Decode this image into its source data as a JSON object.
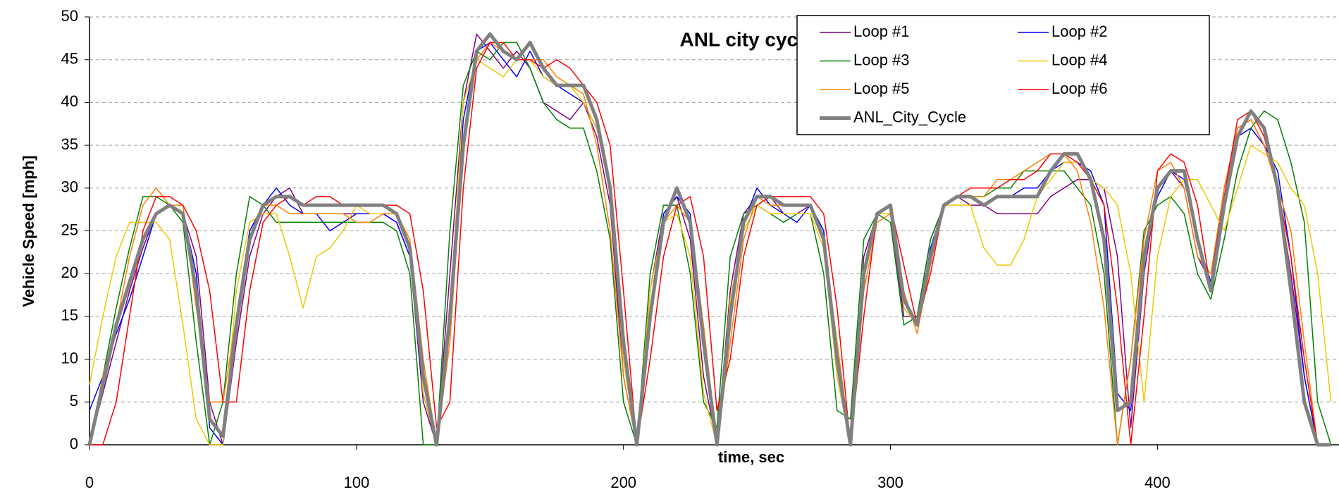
{
  "chart_data": {
    "type": "line",
    "title": "ANL city cycle",
    "xlabel": "time, sec",
    "ylabel": "Vehicle Speed [mph]",
    "x": [
      0,
      5,
      10,
      15,
      20,
      25,
      30,
      35,
      40,
      45,
      50,
      55,
      60,
      65,
      70,
      75,
      80,
      85,
      90,
      95,
      100,
      105,
      110,
      115,
      120,
      125,
      130,
      135,
      140,
      145,
      150,
      155,
      160,
      165,
      170,
      175,
      180,
      185,
      190,
      195,
      200,
      205,
      210,
      215,
      220,
      225,
      230,
      235,
      240,
      245,
      250,
      255,
      260,
      265,
      270,
      275,
      280,
      285,
      290,
      295,
      300,
      305,
      310,
      315,
      320,
      325,
      330,
      335,
      340,
      345,
      350,
      355,
      360,
      365,
      370,
      375,
      380,
      385,
      390,
      395,
      400,
      405,
      410,
      415,
      420,
      425,
      430,
      435,
      440,
      445,
      450,
      455,
      460,
      465
    ],
    "series": [
      {
        "name": "Loop #1",
        "color": "#800080",
        "width": 1.5,
        "values": [
          0,
          6,
          12,
          18,
          23,
          27,
          28,
          27,
          22,
          5,
          0,
          12,
          22,
          27,
          29,
          30,
          27,
          27,
          27,
          27,
          27,
          27,
          27,
          26,
          22,
          5,
          0,
          20,
          40,
          48,
          46,
          44,
          46,
          44,
          40,
          39,
          38,
          40,
          36,
          28,
          8,
          0,
          18,
          27,
          29,
          24,
          8,
          0,
          18,
          27,
          29,
          29,
          27,
          27,
          28,
          25,
          8,
          0,
          22,
          27,
          27,
          15,
          15,
          24,
          28,
          29,
          28,
          28,
          27,
          27,
          27,
          27,
          29,
          30,
          31,
          31,
          30,
          22,
          2,
          20,
          30,
          32,
          30,
          22,
          19,
          30,
          37,
          38,
          35,
          30,
          20,
          8,
          0,
          0
        ]
      },
      {
        "name": "Loop #2",
        "color": "#0000ff",
        "width": 1.5,
        "values": [
          4,
          8,
          13,
          17,
          22,
          27,
          28,
          27,
          20,
          2,
          0,
          15,
          25,
          28,
          30,
          28,
          27,
          27,
          25,
          26,
          27,
          27,
          27,
          26,
          22,
          6,
          0,
          16,
          38,
          46,
          47,
          45,
          43,
          46,
          43,
          42,
          41,
          40,
          37,
          30,
          10,
          0,
          16,
          27,
          29,
          27,
          12,
          0,
          16,
          26,
          30,
          28,
          27,
          26,
          28,
          25,
          10,
          0,
          20,
          27,
          28,
          16,
          14,
          23,
          28,
          29,
          29,
          28,
          29,
          29,
          30,
          30,
          32,
          33,
          33,
          32,
          28,
          6,
          4,
          22,
          29,
          32,
          31,
          24,
          19,
          28,
          36,
          37,
          35,
          32,
          22,
          8,
          0,
          0
        ]
      },
      {
        "name": "Loop #3",
        "color": "#008000",
        "width": 1.5,
        "values": [
          0,
          8,
          16,
          23,
          29,
          29,
          28,
          26,
          12,
          0,
          5,
          20,
          29,
          28,
          26,
          26,
          26,
          26,
          26,
          26,
          26,
          26,
          26,
          25,
          20,
          0,
          0,
          25,
          42,
          46,
          45,
          47,
          47,
          44,
          40,
          38,
          37,
          37,
          32,
          24,
          5,
          0,
          20,
          28,
          28,
          20,
          5,
          2,
          22,
          27,
          28,
          27,
          26,
          27,
          27,
          20,
          4,
          3,
          24,
          27,
          26,
          14,
          15,
          24,
          28,
          29,
          29,
          29,
          30,
          30,
          32,
          32,
          32,
          32,
          30,
          28,
          20,
          0,
          10,
          25,
          28,
          29,
          27,
          20,
          17,
          24,
          32,
          37,
          39,
          38,
          33,
          26,
          5,
          0
        ]
      },
      {
        "name": "Loop #4",
        "color": "#f0c800",
        "width": 1.5,
        "values": [
          7,
          15,
          22,
          26,
          26,
          26,
          24,
          14,
          3,
          0,
          0,
          18,
          26,
          27,
          27,
          22,
          16,
          22,
          23,
          25,
          28,
          27,
          27,
          27,
          24,
          6,
          0,
          15,
          40,
          45,
          44,
          43,
          45,
          45,
          43,
          42,
          42,
          40,
          37,
          30,
          10,
          0,
          18,
          26,
          27,
          22,
          6,
          0,
          17,
          25,
          28,
          27,
          27,
          27,
          27,
          23,
          8,
          0,
          20,
          27,
          27,
          16,
          14,
          22,
          28,
          28,
          28,
          23,
          21,
          21,
          24,
          29,
          31,
          33,
          33,
          31,
          30,
          28,
          20,
          5,
          22,
          29,
          31,
          31,
          28,
          25,
          30,
          35,
          34,
          33,
          30,
          28,
          20,
          5
        ]
      },
      {
        "name": "Loop #5",
        "color": "#ff8000",
        "width": 1.5,
        "values": [
          0,
          8,
          14,
          22,
          28,
          30,
          28,
          28,
          16,
          5,
          5,
          15,
          24,
          28,
          28,
          27,
          27,
          27,
          27,
          27,
          26,
          26,
          27,
          27,
          24,
          10,
          0,
          12,
          35,
          45,
          47,
          46,
          45,
          45,
          45,
          43,
          42,
          41,
          35,
          25,
          8,
          0,
          16,
          26,
          28,
          26,
          14,
          0,
          12,
          24,
          29,
          28,
          28,
          28,
          28,
          24,
          12,
          0,
          18,
          26,
          27,
          18,
          13,
          21,
          28,
          29,
          29,
          29,
          31,
          31,
          32,
          33,
          34,
          34,
          32,
          26,
          16,
          0,
          10,
          24,
          32,
          33,
          30,
          22,
          20,
          30,
          37,
          38,
          35,
          30,
          25,
          12,
          0,
          0
        ]
      },
      {
        "name": "Loop #6",
        "color": "#ff0000",
        "width": 1.5,
        "values": [
          0,
          0,
          5,
          15,
          25,
          29,
          29,
          28,
          25,
          18,
          5,
          5,
          18,
          26,
          28,
          29,
          28,
          29,
          29,
          28,
          28,
          28,
          28,
          28,
          27,
          18,
          2,
          5,
          30,
          44,
          47,
          47,
          45,
          45,
          44,
          45,
          44,
          42,
          40,
          35,
          18,
          0,
          10,
          22,
          28,
          29,
          22,
          4,
          10,
          22,
          28,
          29,
          29,
          29,
          29,
          27,
          16,
          0,
          15,
          27,
          28,
          21,
          14,
          20,
          28,
          29,
          30,
          30,
          30,
          31,
          31,
          32,
          34,
          34,
          33,
          31,
          28,
          16,
          0,
          15,
          32,
          34,
          33,
          28,
          18,
          29,
          38,
          39,
          36,
          30,
          22,
          10,
          0,
          0
        ]
      },
      {
        "name": "ANL_City_Cycle",
        "color": "#808080",
        "width": 5,
        "values": [
          0,
          7,
          14,
          19,
          24,
          27,
          28,
          27,
          18,
          3,
          1,
          14,
          24,
          28,
          29,
          29,
          28,
          28,
          28,
          28,
          28,
          28,
          28,
          27,
          23,
          8,
          0,
          15,
          35,
          46,
          48,
          46,
          45,
          47,
          44,
          42,
          42,
          42,
          38,
          30,
          12,
          0,
          15,
          26,
          30,
          26,
          12,
          0,
          15,
          26,
          29,
          29,
          28,
          28,
          28,
          24,
          10,
          0,
          20,
          27,
          28,
          17,
          14,
          22,
          28,
          29,
          29,
          28,
          29,
          29,
          29,
          29,
          32,
          34,
          34,
          31,
          24,
          4,
          5,
          22,
          30,
          32,
          32,
          24,
          18,
          28,
          36,
          39,
          37,
          30,
          18,
          5,
          0,
          0
        ]
      }
    ],
    "xlim": [
      0,
      468
    ],
    "xticks": [
      0,
      100,
      200,
      300,
      400
    ],
    "ylim": [
      0,
      50
    ],
    "yticks": [
      0,
      5,
      10,
      15,
      20,
      25,
      30,
      35,
      40,
      45,
      50
    ],
    "grid": true
  }
}
